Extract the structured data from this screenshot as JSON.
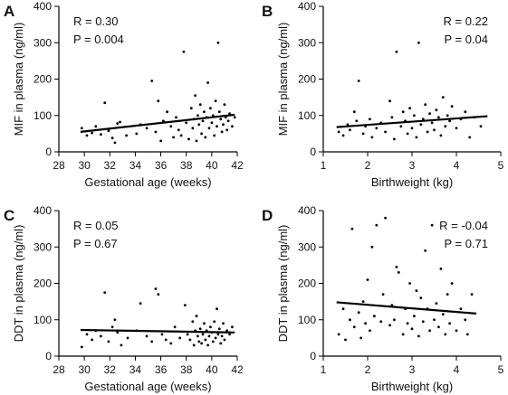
{
  "chart_data": [
    {
      "panel": "A",
      "type": "scatter",
      "xlabel": "Gestational age (weeks)",
      "ylabel": "MIF in plasma (ng/ml)",
      "xlim": [
        28,
        42
      ],
      "ylim": [
        0,
        400
      ],
      "xticks": [
        "28",
        "30",
        "32",
        "34",
        "36",
        "38",
        "40",
        "42"
      ],
      "yticks": [
        "0",
        "100",
        "200",
        "300",
        "400"
      ],
      "stats": {
        "r": "R = 0.30",
        "p": "P = 0.004",
        "placement": "top-left"
      },
      "regression": {
        "x": [
          29.7,
          41.8
        ],
        "y": [
          55,
          102
        ]
      },
      "points": [
        [
          29.8,
          65
        ],
        [
          30.2,
          45
        ],
        [
          30.6,
          52
        ],
        [
          30.9,
          70
        ],
        [
          31.3,
          48
        ],
        [
          31.6,
          135
        ],
        [
          31.9,
          58
        ],
        [
          32.2,
          38
        ],
        [
          32.4,
          25
        ],
        [
          32.6,
          78
        ],
        [
          32.8,
          82
        ],
        [
          33.3,
          45
        ],
        [
          34.1,
          50
        ],
        [
          34.4,
          75
        ],
        [
          34.9,
          65
        ],
        [
          35.3,
          195
        ],
        [
          35.6,
          55
        ],
        [
          35.8,
          140
        ],
        [
          36.0,
          30
        ],
        [
          36.2,
          85
        ],
        [
          36.5,
          110
        ],
        [
          36.8,
          70
        ],
        [
          37.0,
          40
        ],
        [
          37.2,
          95
        ],
        [
          37.4,
          60
        ],
        [
          37.6,
          45
        ],
        [
          37.8,
          275
        ],
        [
          38.0,
          80
        ],
        [
          38.2,
          35
        ],
        [
          38.4,
          120
        ],
        [
          38.5,
          65
        ],
        [
          38.6,
          90
        ],
        [
          38.7,
          155
        ],
        [
          38.8,
          30
        ],
        [
          38.9,
          100
        ],
        [
          39.0,
          75
        ],
        [
          39.1,
          130
        ],
        [
          39.2,
          50
        ],
        [
          39.3,
          85
        ],
        [
          39.4,
          110
        ],
        [
          39.5,
          40
        ],
        [
          39.6,
          95
        ],
        [
          39.7,
          190
        ],
        [
          39.8,
          65
        ],
        [
          39.9,
          120
        ],
        [
          40.0,
          80
        ],
        [
          40.1,
          100
        ],
        [
          40.2,
          45
        ],
        [
          40.3,
          140
        ],
        [
          40.4,
          70
        ],
        [
          40.5,
          300
        ],
        [
          40.6,
          110
        ],
        [
          40.7,
          90
        ],
        [
          40.8,
          55
        ],
        [
          40.9,
          75
        ],
        [
          41.0,
          130
        ],
        [
          41.1,
          95
        ],
        [
          41.2,
          60
        ],
        [
          41.3,
          85
        ],
        [
          41.4,
          105
        ],
        [
          41.6,
          70
        ],
        [
          41.8,
          95
        ]
      ]
    },
    {
      "panel": "B",
      "type": "scatter",
      "xlabel": "Birthweight (kg)",
      "ylabel": "MIF in plasma (ng/ml)",
      "xlim": [
        1,
        5
      ],
      "ylim": [
        0,
        400
      ],
      "xticks": [
        "1",
        "2",
        "3",
        "4",
        "5"
      ],
      "yticks": [
        "0",
        "100",
        "200",
        "300",
        "400"
      ],
      "stats": {
        "r": "R = 0.22",
        "p": "P = 0.04",
        "placement": "top-right"
      },
      "regression": {
        "x": [
          1.3,
          4.7
        ],
        "y": [
          68,
          98
        ]
      },
      "points": [
        [
          1.35,
          55
        ],
        [
          1.45,
          45
        ],
        [
          1.55,
          75
        ],
        [
          1.6,
          60
        ],
        [
          1.7,
          110
        ],
        [
          1.75,
          85
        ],
        [
          1.8,
          195
        ],
        [
          1.9,
          50
        ],
        [
          1.95,
          70
        ],
        [
          2.05,
          90
        ],
        [
          2.1,
          40
        ],
        [
          2.2,
          65
        ],
        [
          2.3,
          80
        ],
        [
          2.4,
          55
        ],
        [
          2.5,
          140
        ],
        [
          2.55,
          95
        ],
        [
          2.6,
          35
        ],
        [
          2.65,
          275
        ],
        [
          2.75,
          70
        ],
        [
          2.8,
          110
        ],
        [
          2.85,
          85
        ],
        [
          2.9,
          50
        ],
        [
          2.95,
          120
        ],
        [
          3.0,
          65
        ],
        [
          3.05,
          100
        ],
        [
          3.1,
          40
        ],
        [
          3.15,
          300
        ],
        [
          3.2,
          75
        ],
        [
          3.25,
          90
        ],
        [
          3.3,
          130
        ],
        [
          3.35,
          55
        ],
        [
          3.4,
          105
        ],
        [
          3.45,
          80
        ],
        [
          3.5,
          60
        ],
        [
          3.55,
          115
        ],
        [
          3.6,
          95
        ],
        [
          3.65,
          45
        ],
        [
          3.7,
          150
        ],
        [
          3.75,
          70
        ],
        [
          3.8,
          100
        ],
        [
          3.85,
          85
        ],
        [
          3.9,
          125
        ],
        [
          4.0,
          65
        ],
        [
          4.1,
          90
        ],
        [
          4.2,
          110
        ],
        [
          4.3,
          40
        ],
        [
          4.4,
          95
        ],
        [
          4.55,
          70
        ]
      ]
    },
    {
      "panel": "C",
      "type": "scatter",
      "xlabel": "Gestational age (weeks)",
      "ylabel": "DDT in plasma (ng/ml)",
      "xlim": [
        28,
        42
      ],
      "ylim": [
        0,
        400
      ],
      "xticks": [
        "28",
        "30",
        "32",
        "34",
        "36",
        "38",
        "40",
        "42"
      ],
      "yticks": [
        "0",
        "100",
        "200",
        "300",
        "400"
      ],
      "stats": {
        "r": "R = 0.05",
        "p": "P = 0.67",
        "placement": "top-left"
      },
      "regression": {
        "x": [
          29.7,
          41.8
        ],
        "y": [
          72,
          65
        ]
      },
      "points": [
        [
          29.8,
          25
        ],
        [
          30.2,
          60
        ],
        [
          30.6,
          45
        ],
        [
          30.9,
          70
        ],
        [
          31.3,
          55
        ],
        [
          31.6,
          175
        ],
        [
          31.9,
          40
        ],
        [
          32.2,
          80
        ],
        [
          32.4,
          100
        ],
        [
          32.6,
          65
        ],
        [
          32.9,
          30
        ],
        [
          33.4,
          50
        ],
        [
          34.1,
          70
        ],
        [
          34.4,
          145
        ],
        [
          34.9,
          55
        ],
        [
          35.3,
          40
        ],
        [
          35.6,
          185
        ],
        [
          35.8,
          170
        ],
        [
          36.1,
          60
        ],
        [
          36.4,
          45
        ],
        [
          36.8,
          35
        ],
        [
          37.1,
          80
        ],
        [
          37.5,
          50
        ],
        [
          37.9,
          140
        ],
        [
          38.1,
          60
        ],
        [
          38.3,
          45
        ],
        [
          38.5,
          95
        ],
        [
          38.6,
          30
        ],
        [
          38.7,
          70
        ],
        [
          38.8,
          110
        ],
        [
          38.9,
          55
        ],
        [
          39.0,
          40
        ],
        [
          39.1,
          75
        ],
        [
          39.2,
          35
        ],
        [
          39.3,
          60
        ],
        [
          39.4,
          90
        ],
        [
          39.5,
          45
        ],
        [
          39.6,
          70
        ],
        [
          39.7,
          30
        ],
        [
          39.8,
          55
        ],
        [
          39.9,
          80
        ],
        [
          40.0,
          65
        ],
        [
          40.1,
          40
        ],
        [
          40.2,
          95
        ],
        [
          40.3,
          50
        ],
        [
          40.4,
          130
        ],
        [
          40.5,
          60
        ],
        [
          40.6,
          75
        ],
        [
          40.7,
          35
        ],
        [
          40.8,
          55
        ],
        [
          40.9,
          90
        ],
        [
          41.0,
          45
        ],
        [
          41.2,
          70
        ],
        [
          41.4,
          60
        ],
        [
          41.6,
          80
        ]
      ]
    },
    {
      "panel": "D",
      "type": "scatter",
      "xlabel": "Birthweight (kg)",
      "ylabel": "DDT in plasma (ng/ml)",
      "xlim": [
        1,
        5
      ],
      "ylim": [
        0,
        400
      ],
      "xticks": [
        "1",
        "2",
        "3",
        "4",
        "5"
      ],
      "yticks": [
        "0",
        "100",
        "200",
        "300",
        "400"
      ],
      "stats": {
        "r": "R = -0.04",
        "p": "P = 0.71",
        "placement": "top-right"
      },
      "regression": {
        "x": [
          1.3,
          4.45
        ],
        "y": [
          148,
          117
        ]
      },
      "points": [
        [
          1.35,
          60
        ],
        [
          1.45,
          130
        ],
        [
          1.5,
          45
        ],
        [
          1.6,
          100
        ],
        [
          1.65,
          350
        ],
        [
          1.7,
          80
        ],
        [
          1.8,
          120
        ],
        [
          1.85,
          50
        ],
        [
          1.9,
          150
        ],
        [
          1.95,
          90
        ],
        [
          2.0,
          210
        ],
        [
          2.05,
          70
        ],
        [
          2.1,
          300
        ],
        [
          2.15,
          110
        ],
        [
          2.2,
          360
        ],
        [
          2.3,
          95
        ],
        [
          2.35,
          170
        ],
        [
          2.4,
          380
        ],
        [
          2.5,
          85
        ],
        [
          2.55,
          140
        ],
        [
          2.6,
          100
        ],
        [
          2.65,
          245
        ],
        [
          2.7,
          230
        ],
        [
          2.8,
          60
        ],
        [
          2.85,
          130
        ],
        [
          2.9,
          90
        ],
        [
          2.95,
          200
        ],
        [
          3.0,
          75
        ],
        [
          3.05,
          110
        ],
        [
          3.1,
          180
        ],
        [
          3.15,
          55
        ],
        [
          3.2,
          160
        ],
        [
          3.25,
          95
        ],
        [
          3.3,
          290
        ],
        [
          3.35,
          130
        ],
        [
          3.4,
          70
        ],
        [
          3.45,
          360
        ],
        [
          3.5,
          100
        ],
        [
          3.55,
          145
        ],
        [
          3.6,
          80
        ],
        [
          3.65,
          240
        ],
        [
          3.7,
          115
        ],
        [
          3.75,
          60
        ],
        [
          3.8,
          170
        ],
        [
          3.85,
          90
        ],
        [
          3.9,
          200
        ],
        [
          4.0,
          70
        ],
        [
          4.1,
          130
        ],
        [
          4.2,
          100
        ],
        [
          4.25,
          60
        ],
        [
          4.35,
          170
        ]
      ]
    }
  ]
}
